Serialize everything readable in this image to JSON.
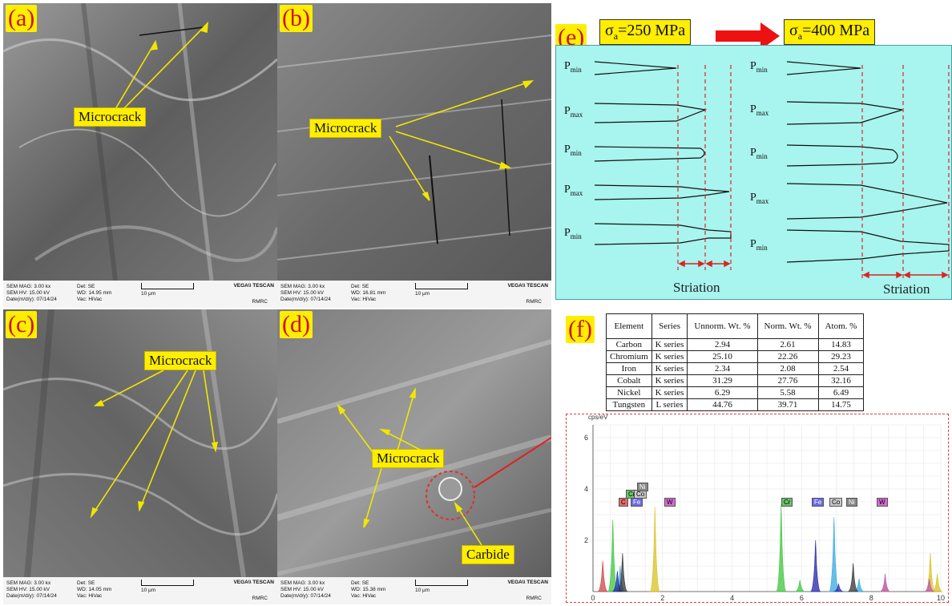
{
  "panels": {
    "a": {
      "label": "(a)",
      "callouts": [
        "Microcrack"
      ],
      "info": {
        "mag": "SEM MAG: 3.00 kx",
        "hv": "SEM HV: 15.00 kV",
        "date": "Date(m/d/y): 07/14/24",
        "det": "Det: SE",
        "wd": "WD: 14.95 mm",
        "vac": "Vac: HiVac",
        "scale": "10 μm",
        "brand": "VEGA\\\\ TESCAN",
        "rmrc": "RMRC"
      }
    },
    "b": {
      "label": "(b)",
      "callouts": [
        "Microcrack"
      ],
      "info": {
        "mag": "SEM MAG: 3.00 kx",
        "hv": "SEM HV: 15.00 kV",
        "date": "Date(m/d/y): 07/14/24",
        "det": "Det: SE",
        "wd": "WD: 16.81 mm",
        "vac": "Vac: HiVac",
        "scale": "10 μm",
        "brand": "VEGA\\\\ TESCAN",
        "rmrc": "RMRC"
      }
    },
    "c": {
      "label": "(c)",
      "callouts": [
        "Microcrack"
      ],
      "info": {
        "mag": "SEM MAG: 3.00 kx",
        "hv": "SEM HV: 15.00 kV",
        "date": "Date(m/d/y): 07/14/24",
        "det": "Det: SE",
        "wd": "WD: 14.05 mm",
        "vac": "Vac: HiVac",
        "scale": "10 μm",
        "brand": "VEGA\\\\ TESCAN",
        "rmrc": "RMRC"
      }
    },
    "d": {
      "label": "(d)",
      "callouts": [
        "Microcrack",
        "Carbide"
      ],
      "info": {
        "mag": "SEM MAG: 3.00 kx",
        "hv": "SEM HV: 15.00 kV",
        "date": "Date(m/d/y): 07/14/24",
        "det": "Det: SE",
        "wd": "WD: 15.38 mm",
        "vac": "Vac: HiVac",
        "scale": "10 μm",
        "brand": "VEGA\\\\ TESCAN",
        "rmrc": "RMRC"
      }
    },
    "e": {
      "label": "(e)",
      "stress_left": {
        "sym": "σ",
        "sub": "a",
        "rest": "=250 MPa"
      },
      "stress_right": {
        "sym": "σ",
        "sub": "a",
        "rest": "=400 MPa"
      },
      "p_labels": [
        {
          "main": "P",
          "sub": "min"
        },
        {
          "main": "P",
          "sub": "max"
        },
        {
          "main": "P",
          "sub": "min"
        },
        {
          "main": "P",
          "sub": "max"
        },
        {
          "main": "P",
          "sub": "min"
        }
      ],
      "striation": "Striation",
      "background": "#a8f4ee"
    },
    "f": {
      "label": "(f)",
      "table": {
        "headers": [
          "Element",
          "Series",
          "Unnorm. Wt. %",
          "Norm. Wt. %",
          "Atom. %"
        ],
        "rows": [
          [
            "Carbon",
            "K series",
            "2.94",
            "2.61",
            "14.83"
          ],
          [
            "Chromium",
            "K series",
            "25.10",
            "22.26",
            "29.23"
          ],
          [
            "Iron",
            "K series",
            "2.34",
            "2.08",
            "2.54"
          ],
          [
            "Cobalt",
            "K series",
            "31.29",
            "27.76",
            "32.16"
          ],
          [
            "Nickel",
            "K series",
            "6.29",
            "5.58",
            "6.49"
          ],
          [
            "Tungsten",
            "L series",
            "44.76",
            "39.71",
            "14.75"
          ]
        ]
      },
      "spectrum": {
        "ylabel": "cps/eV",
        "peak_tags": [
          {
            "text": "C",
            "color": "#e46a6a"
          },
          {
            "text": "Cr",
            "color": "#6ac46a"
          },
          {
            "text": "Fe",
            "color": "#6a6ae4"
          },
          {
            "text": "Co",
            "color": "#c8c8c8"
          },
          {
            "text": "Ni",
            "color": "#888888"
          },
          {
            "text": "W",
            "color": "#d46ad4"
          },
          {
            "text": "Cr",
            "color": "#6ac46a"
          },
          {
            "text": "Fe",
            "color": "#6a6ae4"
          },
          {
            "text": "Co",
            "color": "#c8c8c8"
          },
          {
            "text": "Ni",
            "color": "#888888"
          },
          {
            "text": "W",
            "color": "#d46ad4"
          }
        ]
      }
    }
  },
  "chart_data": {
    "type": "bar",
    "ylabel": "cps/eV",
    "xlim": [
      0,
      10
    ],
    "ylim": [
      0,
      6.5
    ],
    "x_ticks": [
      0,
      2,
      4,
      6,
      8,
      10
    ],
    "y_ticks": [
      2,
      4,
      6
    ],
    "series": [
      {
        "color": "#d9c020",
        "peaks": [
          [
            1.78,
            3.3
          ],
          [
            8.4,
            0.35
          ],
          [
            9.7,
            1.5
          ],
          [
            9.9,
            0.7
          ]
        ]
      },
      {
        "color": "#3cc43c",
        "peaks": [
          [
            0.57,
            2.8
          ],
          [
            5.41,
            3.4
          ],
          [
            5.95,
            0.45
          ]
        ]
      },
      {
        "color": "#33aadd",
        "peaks": [
          [
            0.78,
            1.0
          ],
          [
            6.93,
            2.9
          ],
          [
            7.65,
            0.5
          ]
        ]
      },
      {
        "color": "#2222aa",
        "peaks": [
          [
            0.7,
            0.8
          ],
          [
            6.4,
            2.0
          ],
          [
            7.06,
            0.3
          ]
        ]
      },
      {
        "color": "#333333",
        "peaks": [
          [
            0.85,
            1.5
          ],
          [
            7.48,
            1.1
          ]
        ]
      },
      {
        "color": "#cc4444",
        "peaks": [
          [
            0.28,
            1.2
          ]
        ]
      },
      {
        "color": "#bb55bb",
        "peaks": [
          [
            8.4,
            0.7
          ],
          [
            9.67,
            0.5
          ]
        ]
      }
    ]
  }
}
